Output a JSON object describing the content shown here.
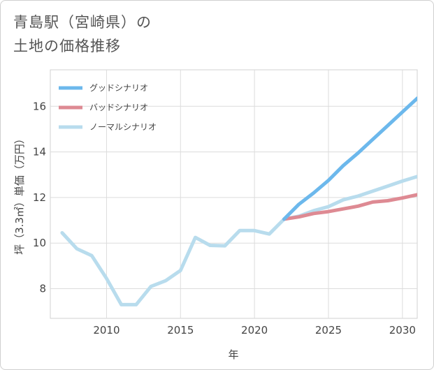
{
  "title": {
    "line1": "青島駅（宮崎県）の",
    "line2": "土地の価格推移"
  },
  "chart_data": {
    "type": "line",
    "xlabel": "年",
    "ylabel": "坪（3.3㎡）単価（万円）",
    "xlim": [
      2006.2,
      2031
    ],
    "ylim": [
      6.7,
      17.6
    ],
    "xticks": [
      2010,
      2015,
      2020,
      2025,
      2030
    ],
    "yticks": [
      8,
      10,
      12,
      14,
      16
    ],
    "legend_position": "top-left",
    "series": [
      {
        "name": "グッドシナリオ",
        "color": "#6cb8ec",
        "x": [
          2022,
          2023,
          2024,
          2025,
          2026,
          2027,
          2028,
          2029,
          2030,
          2031
        ],
        "y": [
          11.05,
          11.7,
          12.2,
          12.75,
          13.4,
          13.95,
          14.55,
          15.15,
          15.75,
          16.35
        ]
      },
      {
        "name": "バッドシナリオ",
        "color": "#de8a93",
        "x": [
          2022,
          2023,
          2024,
          2025,
          2026,
          2027,
          2028,
          2029,
          2030,
          2031
        ],
        "y": [
          11.05,
          11.15,
          11.3,
          11.38,
          11.5,
          11.62,
          11.8,
          11.86,
          11.98,
          12.12
        ]
      },
      {
        "name": "ノーマルシナリオ",
        "color": "#b8dced",
        "x": [
          2007,
          2008,
          2009,
          2010,
          2011,
          2012,
          2013,
          2014,
          2015,
          2016,
          2017,
          2018,
          2019,
          2020,
          2021,
          2022,
          2023,
          2024,
          2025,
          2026,
          2027,
          2028,
          2029,
          2030,
          2031
        ],
        "y": [
          10.45,
          9.75,
          9.45,
          8.45,
          7.3,
          7.3,
          8.1,
          8.35,
          8.8,
          10.25,
          9.9,
          9.88,
          10.55,
          10.55,
          10.4,
          11.05,
          11.18,
          11.42,
          11.6,
          11.9,
          12.06,
          12.28,
          12.5,
          12.72,
          12.92
        ]
      }
    ]
  }
}
